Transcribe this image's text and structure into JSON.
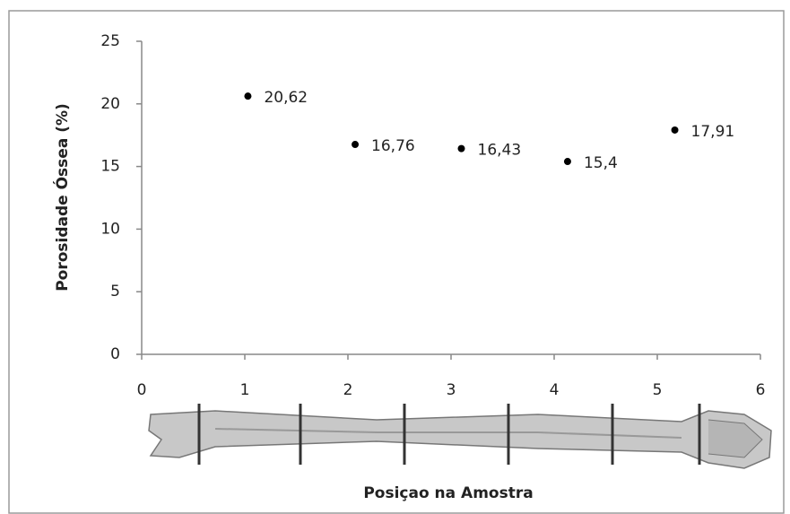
{
  "chart_data": {
    "type": "scatter",
    "y_label": "Porosidade Óssea (%)",
    "x_label": "Posiçao na Amostra",
    "x": [
      1.03,
      2.07,
      3.1,
      4.13,
      5.17
    ],
    "values": [
      20.62,
      16.76,
      16.43,
      15.4,
      17.91
    ],
    "value_labels": [
      "20,62",
      "16,76",
      "16,43",
      "15,4",
      "17,91"
    ],
    "color": "#000000",
    "xlim": [
      0,
      6
    ],
    "xticks": [
      0,
      1,
      2,
      3,
      4,
      5,
      6
    ],
    "ylim": [
      0,
      25
    ],
    "yticks": [
      0,
      5,
      10,
      15,
      20,
      25
    ]
  }
}
